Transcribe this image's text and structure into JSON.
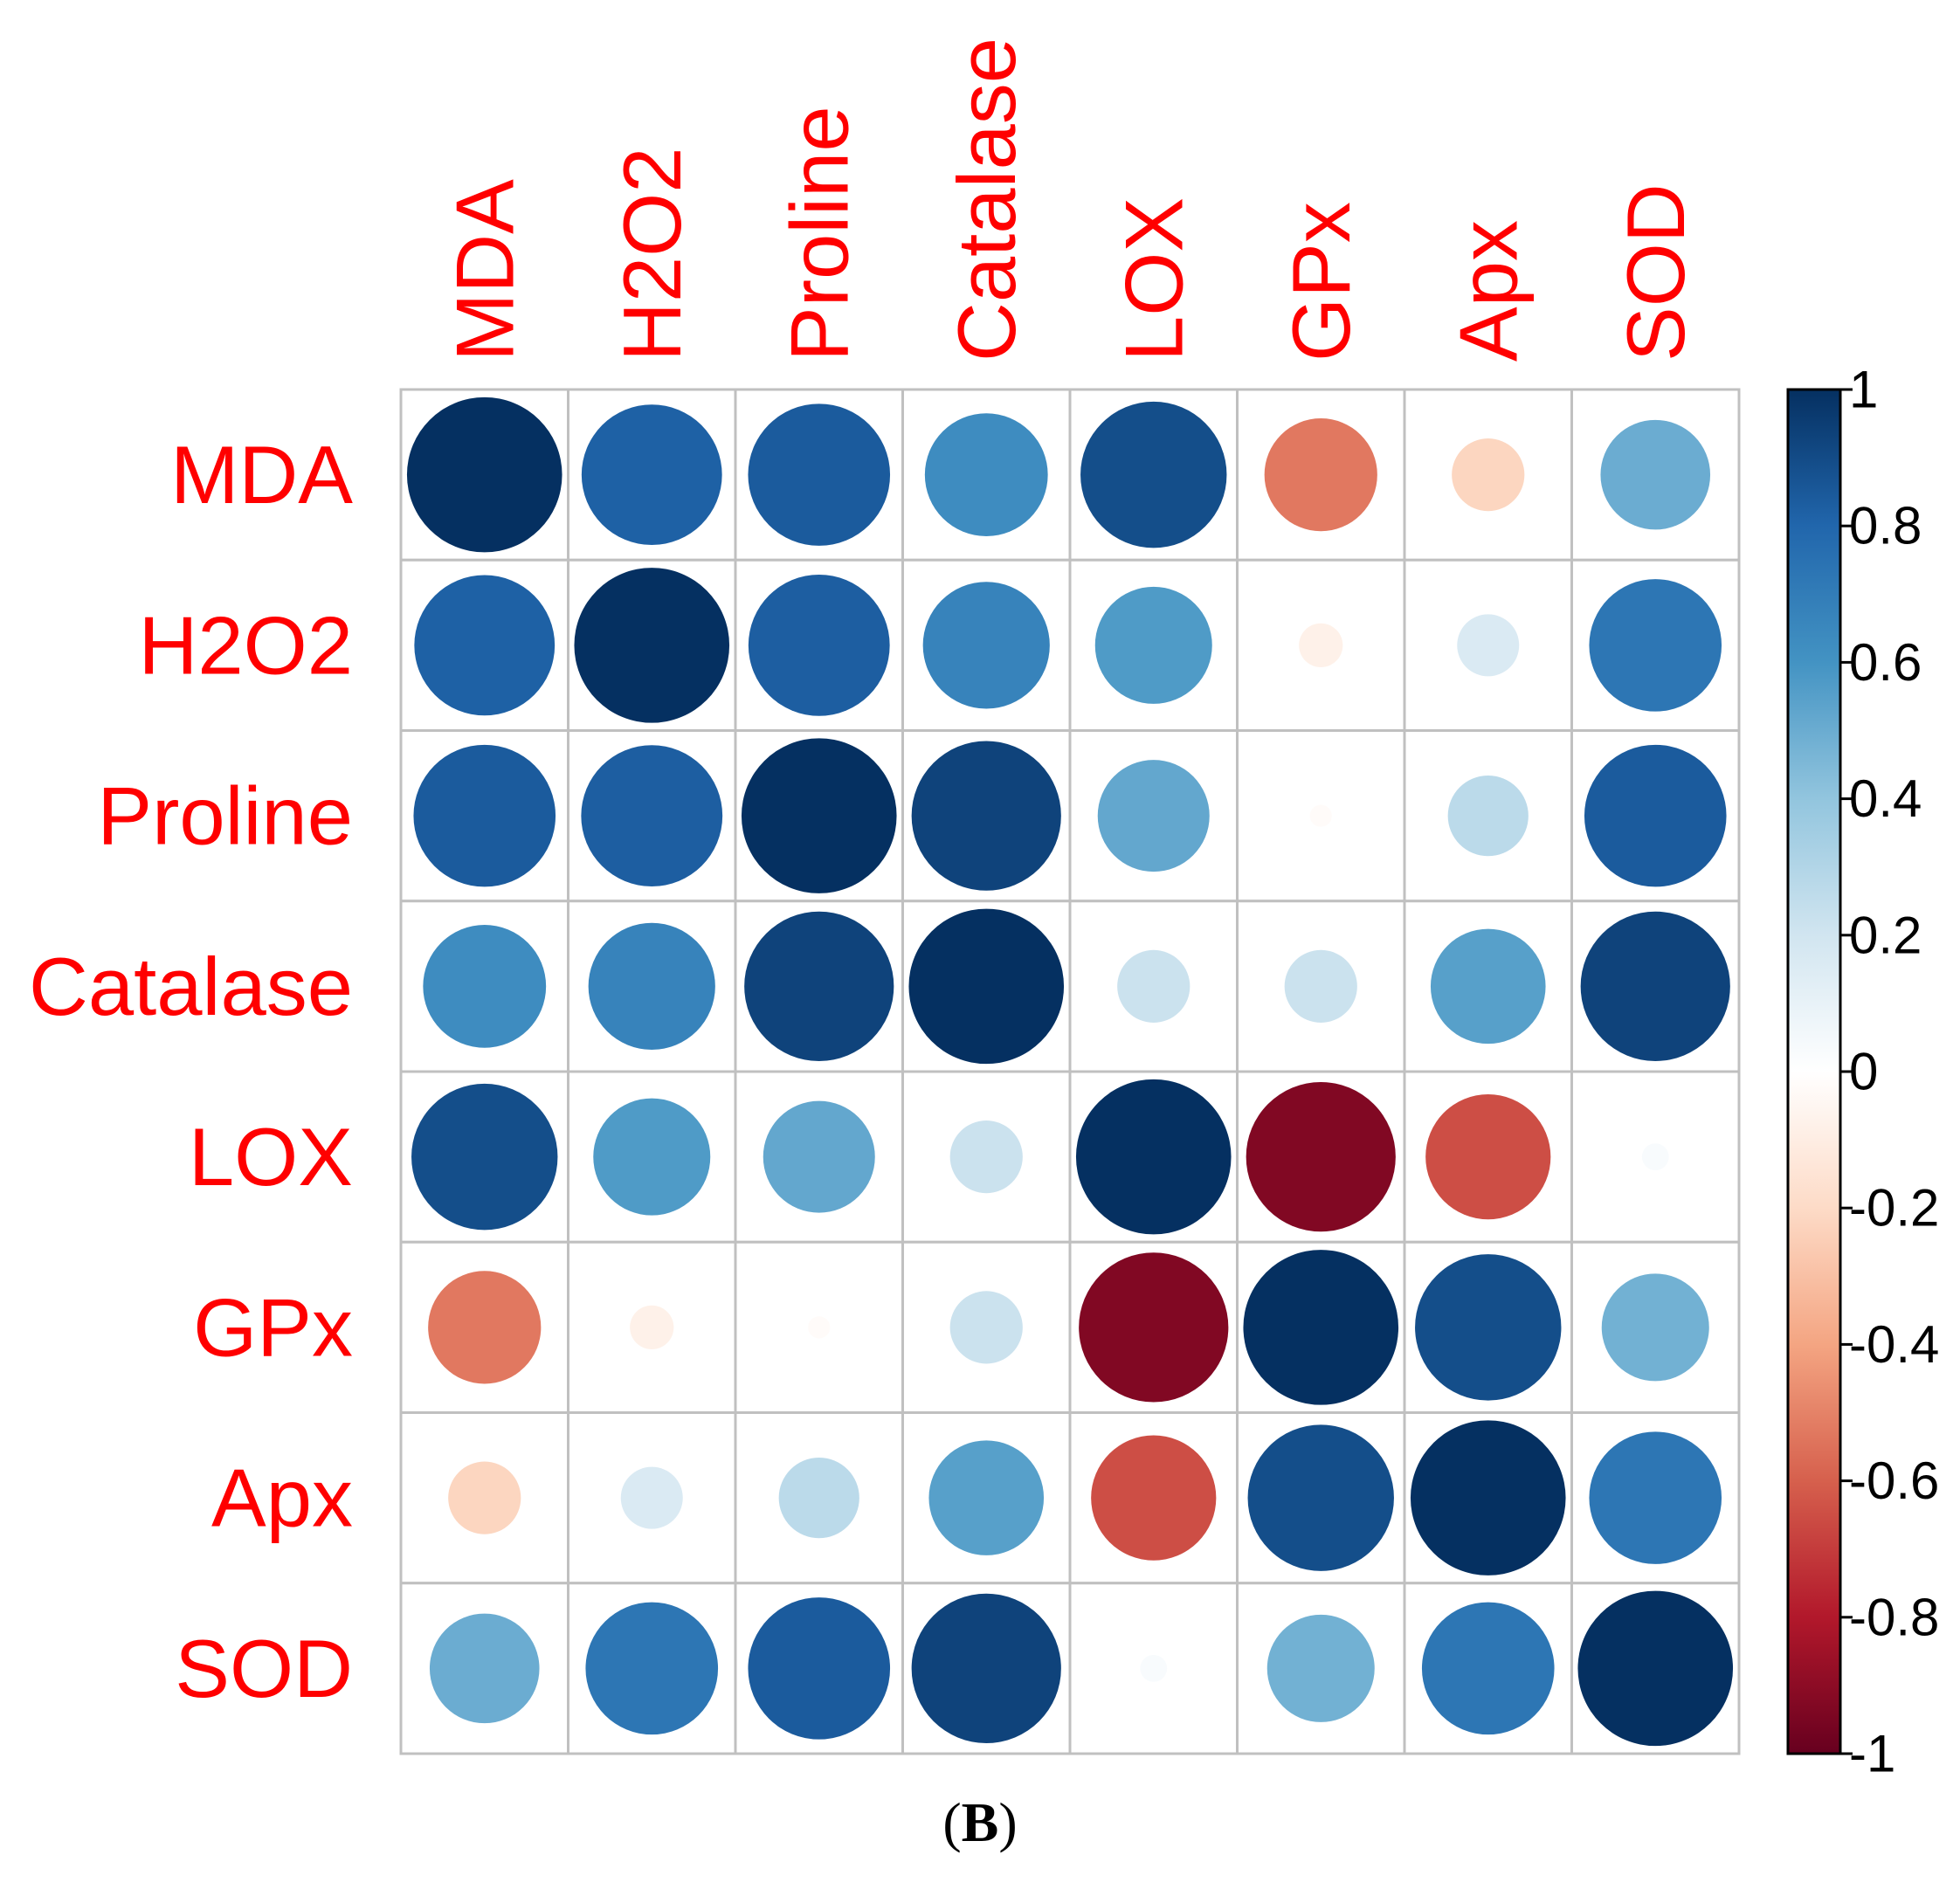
{
  "chart_data": {
    "type": "heatmap",
    "subtype": "correlation-circle-matrix",
    "variables": [
      "MDA",
      "H2O2",
      "Proline",
      "Catalase",
      "LOX",
      "GPx",
      "Apx",
      "SOD"
    ],
    "matrix": [
      [
        1.0,
        0.82,
        0.84,
        0.63,
        0.89,
        -0.53,
        -0.22,
        0.5
      ],
      [
        0.82,
        1.0,
        0.83,
        0.67,
        0.57,
        -0.08,
        0.16,
        0.73
      ],
      [
        0.84,
        0.83,
        1.0,
        0.93,
        0.52,
        -0.02,
        0.27,
        0.84
      ],
      [
        0.63,
        0.67,
        0.93,
        1.0,
        0.22,
        0.22,
        0.55,
        0.93
      ],
      [
        0.89,
        0.57,
        0.52,
        0.22,
        1.0,
        -0.93,
        -0.65,
        0.03
      ],
      [
        -0.53,
        -0.08,
        -0.02,
        0.22,
        -0.93,
        1.0,
        0.89,
        0.48
      ],
      [
        -0.22,
        0.16,
        0.27,
        0.55,
        -0.65,
        0.89,
        1.0,
        0.73
      ],
      [
        0.5,
        0.73,
        0.84,
        0.93,
        0.03,
        0.48,
        0.73,
        1.0
      ]
    ],
    "colorbar": {
      "range": [
        -1,
        1
      ],
      "tick_labels": [
        "1",
        "0.8",
        "0.6",
        "0.4",
        "0.2",
        "0",
        "-0.2",
        "-0.4",
        "-0.6",
        "-0.8",
        "-1"
      ],
      "negative_color": "#67001F",
      "zero_color": "#FFFFFF",
      "positive_color": "#053061"
    },
    "label_color": "#FF0000",
    "grid_color": "#C0C0C0"
  },
  "caption": {
    "open": "(",
    "letter": "B",
    "close": ")"
  }
}
